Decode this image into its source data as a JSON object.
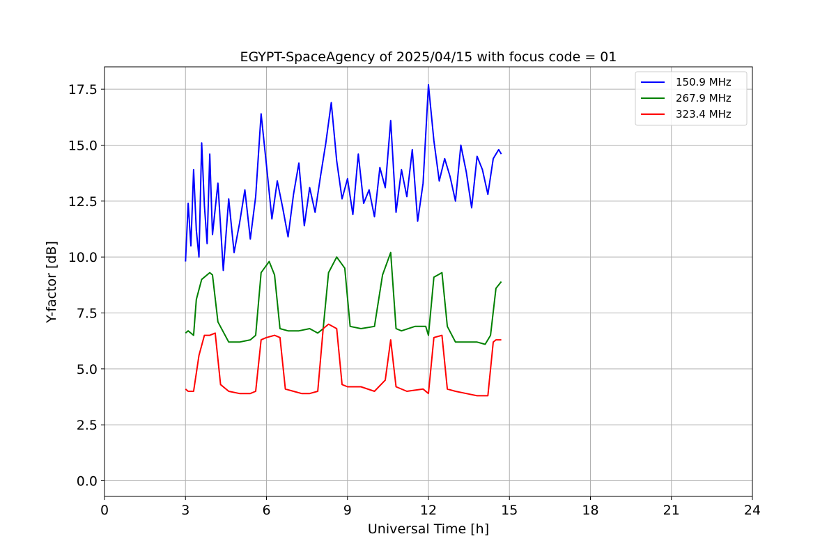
{
  "chart_data": {
    "type": "line",
    "title": "EGYPT-SpaceAgency of 2025/04/15 with focus code = 01",
    "xlabel": "Universal Time [h]",
    "ylabel": "Y-factor [dB]",
    "xlim": [
      0,
      24
    ],
    "ylim": [
      -0.7,
      18.5
    ],
    "xticks": [
      0,
      3,
      6,
      9,
      12,
      15,
      18,
      21,
      24
    ],
    "xtick_labels": [
      "0",
      "3",
      "6",
      "9",
      "12",
      "15",
      "18",
      "21",
      "24"
    ],
    "yticks": [
      0,
      2.5,
      5,
      7.5,
      10,
      12.5,
      15,
      17.5
    ],
    "ytick_labels": [
      "0.0",
      "2.5",
      "5.0",
      "7.5",
      "10.0",
      "12.5",
      "15.0",
      "17.5"
    ],
    "grid": true,
    "legend_position": "top-right",
    "series": [
      {
        "name": "150.9 MHz",
        "color": "#0000ff",
        "x": [
          3.0,
          3.1,
          3.2,
          3.3,
          3.4,
          3.5,
          3.6,
          3.7,
          3.8,
          3.9,
          4.0,
          4.2,
          4.4,
          4.6,
          4.8,
          5.0,
          5.2,
          5.4,
          5.6,
          5.8,
          6.0,
          6.2,
          6.4,
          6.6,
          6.8,
          7.0,
          7.2,
          7.4,
          7.6,
          7.8,
          8.0,
          8.2,
          8.4,
          8.6,
          8.8,
          9.0,
          9.2,
          9.4,
          9.6,
          9.8,
          10.0,
          10.2,
          10.4,
          10.6,
          10.8,
          11.0,
          11.2,
          11.4,
          11.6,
          11.8,
          12.0,
          12.2,
          12.4,
          12.6,
          12.8,
          13.0,
          13.2,
          13.4,
          13.6,
          13.8,
          14.0,
          14.2,
          14.4,
          14.6,
          14.7
        ],
        "y": [
          9.8,
          12.4,
          10.5,
          13.9,
          11.2,
          10.0,
          15.1,
          12.3,
          10.6,
          14.6,
          11.0,
          13.3,
          9.4,
          12.6,
          10.2,
          11.5,
          13.0,
          10.8,
          12.7,
          16.4,
          14.1,
          11.7,
          13.4,
          12.2,
          10.9,
          12.8,
          14.2,
          11.4,
          13.1,
          12.0,
          13.6,
          15.1,
          16.9,
          14.3,
          12.6,
          13.5,
          11.9,
          14.6,
          12.4,
          13.0,
          11.8,
          14.0,
          13.1,
          16.1,
          12.0,
          13.9,
          12.7,
          14.8,
          11.6,
          13.3,
          17.7,
          15.2,
          13.4,
          14.4,
          13.6,
          12.5,
          15.0,
          13.8,
          12.2,
          14.5,
          13.9,
          12.8,
          14.4,
          14.8,
          14.6
        ]
      },
      {
        "name": "267.9 MHz",
        "color": "#008000",
        "x": [
          3.0,
          3.1,
          3.3,
          3.4,
          3.6,
          3.9,
          4.0,
          4.2,
          4.6,
          5.0,
          5.4,
          5.6,
          5.8,
          6.1,
          6.3,
          6.5,
          6.8,
          7.2,
          7.6,
          7.9,
          8.1,
          8.3,
          8.6,
          8.9,
          9.1,
          9.5,
          10.0,
          10.3,
          10.6,
          10.8,
          11.0,
          11.5,
          11.9,
          12.0,
          12.2,
          12.5,
          12.7,
          13.0,
          13.4,
          13.8,
          14.1,
          14.3,
          14.5,
          14.7
        ],
        "y": [
          6.6,
          6.7,
          6.5,
          8.1,
          9.0,
          9.3,
          9.2,
          7.1,
          6.2,
          6.2,
          6.3,
          6.5,
          9.3,
          9.8,
          9.2,
          6.8,
          6.7,
          6.7,
          6.8,
          6.6,
          6.8,
          9.3,
          10.0,
          9.5,
          6.9,
          6.8,
          6.9,
          9.2,
          10.2,
          6.8,
          6.7,
          6.9,
          6.9,
          6.5,
          9.1,
          9.3,
          6.9,
          6.2,
          6.2,
          6.2,
          6.1,
          6.5,
          8.6,
          8.9
        ]
      },
      {
        "name": "323.4 MHz",
        "color": "#ff0000",
        "x": [
          3.0,
          3.1,
          3.3,
          3.5,
          3.7,
          3.9,
          4.1,
          4.3,
          4.6,
          5.0,
          5.4,
          5.6,
          5.8,
          6.0,
          6.3,
          6.5,
          6.7,
          7.0,
          7.3,
          7.6,
          7.9,
          8.1,
          8.3,
          8.6,
          8.8,
          9.0,
          9.5,
          10.0,
          10.4,
          10.6,
          10.8,
          11.2,
          11.8,
          12.0,
          12.2,
          12.5,
          12.7,
          13.0,
          13.4,
          13.8,
          14.2,
          14.4,
          14.5,
          14.7
        ],
        "y": [
          4.1,
          4.0,
          4.0,
          5.6,
          6.5,
          6.5,
          6.6,
          4.3,
          4.0,
          3.9,
          3.9,
          4.0,
          6.3,
          6.4,
          6.5,
          6.4,
          4.1,
          4.0,
          3.9,
          3.9,
          4.0,
          6.8,
          7.0,
          6.8,
          4.3,
          4.2,
          4.2,
          4.0,
          4.5,
          6.3,
          4.2,
          4.0,
          4.1,
          3.9,
          6.4,
          6.5,
          4.1,
          4.0,
          3.9,
          3.8,
          3.8,
          6.2,
          6.3,
          6.3
        ]
      }
    ]
  }
}
